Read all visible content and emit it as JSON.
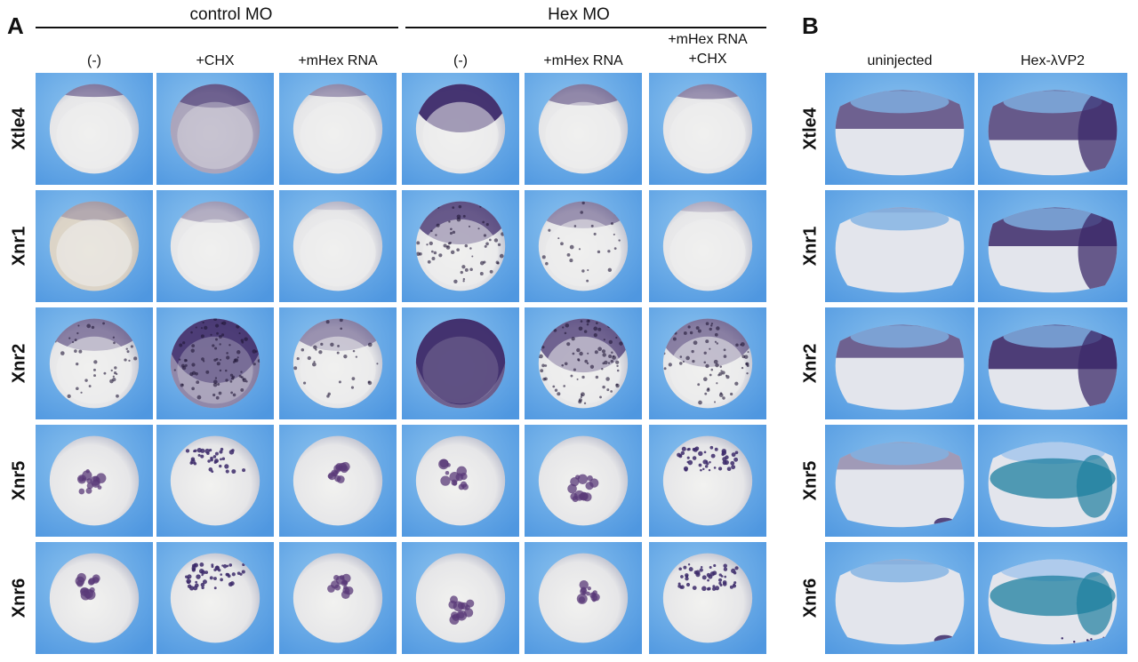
{
  "panel_a": {
    "letter": "A",
    "groups": [
      {
        "label": "control MO"
      },
      {
        "label": "Hex MO"
      }
    ],
    "columns": [
      {
        "label": "(-)"
      },
      {
        "label": "+CHX"
      },
      {
        "label": "+mHex RNA"
      },
      {
        "label": "(-)"
      },
      {
        "label": "+mHex RNA"
      },
      {
        "label": "+mHex RNA\n+CHX"
      }
    ],
    "rows": [
      {
        "label": "Xtle4"
      },
      {
        "label": "Xnr1"
      },
      {
        "label": "Xnr2"
      },
      {
        "label": "Xnr5"
      },
      {
        "label": "Xnr6"
      }
    ]
  },
  "panel_b": {
    "letter": "B",
    "columns": [
      {
        "label": "uninjected"
      },
      {
        "label": "Hex-λVP2"
      }
    ],
    "rows": [
      {
        "label": "Xtle4"
      },
      {
        "label": "Xnr1"
      },
      {
        "label": "Xnr2"
      },
      {
        "label": "Xnr5"
      },
      {
        "label": "Xnr6"
      }
    ]
  },
  "colors": {
    "background_blue": "#4f97e0",
    "background_blue_light": "#8cc3ef",
    "embryo_light": "#e6e6e8",
    "stain_purple": "#3c2a6a",
    "stain_teal": "#1e7fa0"
  }
}
